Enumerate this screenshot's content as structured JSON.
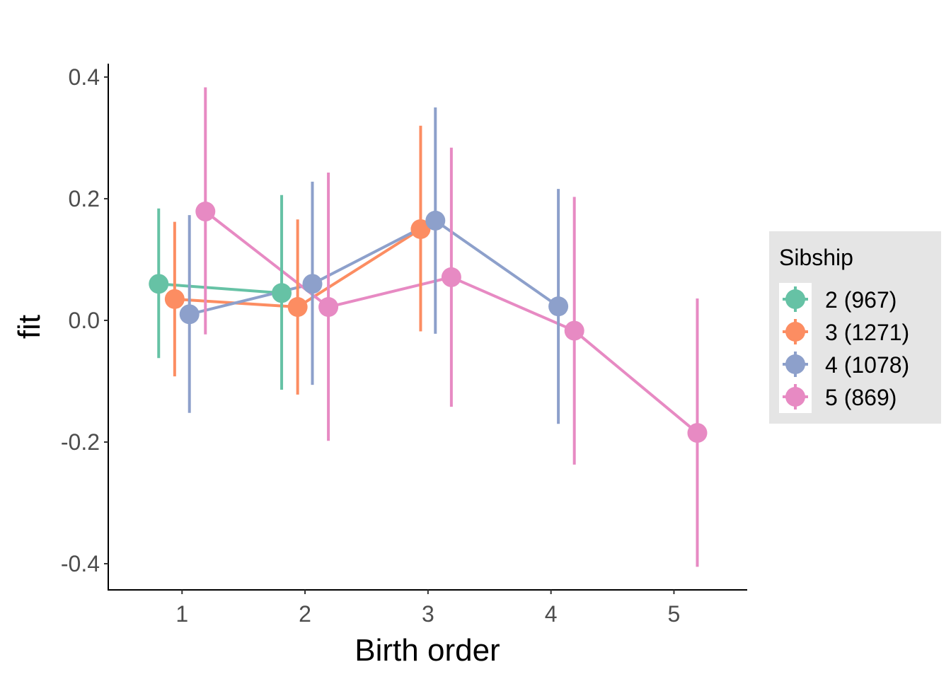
{
  "chart_data": {
    "type": "scatter",
    "subtype": "pointrange-with-lines",
    "title": "",
    "xlabel": "Birth order",
    "ylabel": "fit",
    "x_ticks": [
      1,
      2,
      3,
      4,
      5
    ],
    "x_tick_labels": [
      "1",
      "2",
      "3",
      "4",
      "5"
    ],
    "y_ticks": [
      0.4,
      0.2,
      0.0,
      -0.2,
      -0.4
    ],
    "y_tick_labels": [
      "0.4",
      "0.2",
      "0.0",
      "-0.2",
      "-0.4"
    ],
    "xlim": [
      0.4,
      5.59
    ],
    "ylim": [
      -0.443,
      0.422
    ],
    "grid": false,
    "dodge_offsets": {
      "2 (967)": -0.19,
      "3 (1271)": -0.06,
      "4 (1078)": 0.06,
      "5 (869)": 0.19
    },
    "legend": {
      "title": "Sibship",
      "placement": "right",
      "entries": [
        "2 (967)",
        "3 (1271)",
        "4 (1078)",
        "5 (869)"
      ]
    },
    "series": [
      {
        "name": "2 (967)",
        "color": "#66C2A5",
        "points": [
          {
            "x": 1,
            "y": 0.06,
            "lower": -0.062,
            "upper": 0.184
          },
          {
            "x": 2,
            "y": 0.045,
            "lower": -0.114,
            "upper": 0.206
          }
        ]
      },
      {
        "name": "3 (1271)",
        "color": "#FC8D62",
        "points": [
          {
            "x": 1,
            "y": 0.035,
            "lower": -0.092,
            "upper": 0.162
          },
          {
            "x": 2,
            "y": 0.022,
            "lower": -0.122,
            "upper": 0.166
          },
          {
            "x": 3,
            "y": 0.15,
            "lower": -0.018,
            "upper": 0.32
          }
        ]
      },
      {
        "name": "4 (1078)",
        "color": "#8DA0CB",
        "points": [
          {
            "x": 1,
            "y": 0.01,
            "lower": -0.152,
            "upper": 0.173
          },
          {
            "x": 2,
            "y": 0.06,
            "lower": -0.106,
            "upper": 0.228
          },
          {
            "x": 3,
            "y": 0.164,
            "lower": -0.022,
            "upper": 0.35
          },
          {
            "x": 4,
            "y": 0.023,
            "lower": -0.17,
            "upper": 0.216
          }
        ]
      },
      {
        "name": "5 (869)",
        "color": "#E78AC3",
        "points": [
          {
            "x": 1,
            "y": 0.179,
            "lower": -0.023,
            "upper": 0.383
          },
          {
            "x": 2,
            "y": 0.022,
            "lower": -0.198,
            "upper": 0.243
          },
          {
            "x": 3,
            "y": 0.071,
            "lower": -0.142,
            "upper": 0.284
          },
          {
            "x": 4,
            "y": -0.017,
            "lower": -0.237,
            "upper": 0.203
          },
          {
            "x": 5,
            "y": -0.185,
            "lower": -0.405,
            "upper": 0.036
          }
        ]
      }
    ]
  }
}
